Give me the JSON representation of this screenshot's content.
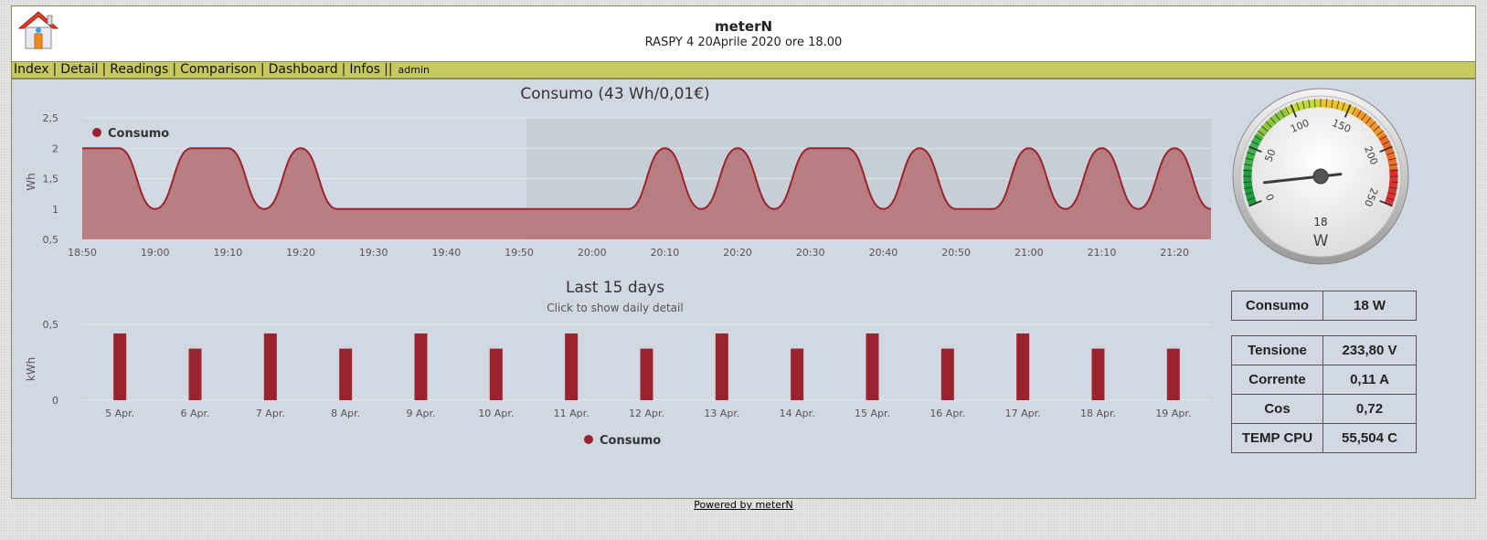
{
  "header": {
    "title": "meterN",
    "subtitle": "RASPY 4 20Aprile 2020 ore 18.00",
    "logo": "house-icon"
  },
  "nav": {
    "items": [
      "Index",
      "Detail",
      "Readings",
      "Comparison",
      "Dashboard",
      "Infos"
    ],
    "user": "admin"
  },
  "colors": {
    "series": "#9b232d",
    "area": "#b57478",
    "navbar": "#c8c860",
    "panel": "#d2d8e1"
  },
  "chart_data": [
    {
      "type": "area",
      "title": "Consumo (43 Wh/0,01€)",
      "ylabel": "Wh",
      "ylim": [
        0.5,
        2.5
      ],
      "y_ticks": [
        "2,5",
        "2",
        "1,5",
        "1",
        "0,5"
      ],
      "x_ticks": [
        "18:50",
        "19:00",
        "19:10",
        "19:20",
        "19:30",
        "19:40",
        "19:50",
        "20:00",
        "20:10",
        "20:20",
        "20:30",
        "20:40",
        "20:50",
        "21:00",
        "21:10",
        "21:20"
      ],
      "legend": "top-left",
      "series": [
        {
          "name": "Consumo",
          "x": [
            "18:50",
            "18:55",
            "19:00",
            "19:05",
            "19:10",
            "19:15",
            "19:20",
            "19:25",
            "19:30",
            "19:35",
            "19:40",
            "19:45",
            "19:50",
            "19:55",
            "20:00",
            "20:05",
            "20:10",
            "20:15",
            "20:20",
            "20:25",
            "20:30",
            "20:35",
            "20:40",
            "20:45",
            "20:50",
            "20:55",
            "21:00",
            "21:05",
            "21:10",
            "21:15",
            "21:20",
            "21:25"
          ],
          "values": [
            2,
            2,
            1,
            2,
            2,
            1,
            2,
            1,
            1,
            1,
            1,
            1,
            1,
            1,
            1,
            1,
            2,
            1,
            2,
            1,
            2,
            2,
            1,
            2,
            1,
            1,
            2,
            1,
            2,
            1,
            2,
            1
          ]
        }
      ]
    },
    {
      "type": "bar",
      "title": "Last 15 days",
      "subtitle": "Click to show daily detail",
      "ylabel": "kWh",
      "ylim": [
        0,
        0.5
      ],
      "y_ticks": [
        "0,5",
        "0"
      ],
      "legend": "bottom-center",
      "categories": [
        "5 Apr.",
        "6 Apr.",
        "7 Apr.",
        "8 Apr.",
        "9 Apr.",
        "10 Apr.",
        "11 Apr.",
        "12 Apr.",
        "13 Apr.",
        "14 Apr.",
        "15 Apr.",
        "16 Apr.",
        "17 Apr.",
        "18 Apr.",
        "19 Apr."
      ],
      "series": [
        {
          "name": "Consumo",
          "values": [
            0.44,
            0.34,
            0.44,
            0.34,
            0.44,
            0.34,
            0.44,
            0.34,
            0.44,
            0.34,
            0.44,
            0.34,
            0.44,
            0.34,
            0.34
          ]
        }
      ]
    },
    {
      "type": "gauge",
      "unit": "W",
      "value": 18,
      "min": -25,
      "max": 275,
      "labels": [
        "0",
        "50",
        "100",
        "150",
        "200",
        "250"
      ]
    }
  ],
  "stats": {
    "consumo": {
      "label": "Consumo",
      "value": "18 W"
    },
    "rows": [
      {
        "label": "Tensione",
        "value": "233,80 V"
      },
      {
        "label": "Corrente",
        "value": "0,11 A"
      },
      {
        "label": "Cos",
        "value": "0,72"
      },
      {
        "label": "TEMP CPU",
        "value": "55,504 C"
      }
    ]
  },
  "footer": "Powered by meterN"
}
